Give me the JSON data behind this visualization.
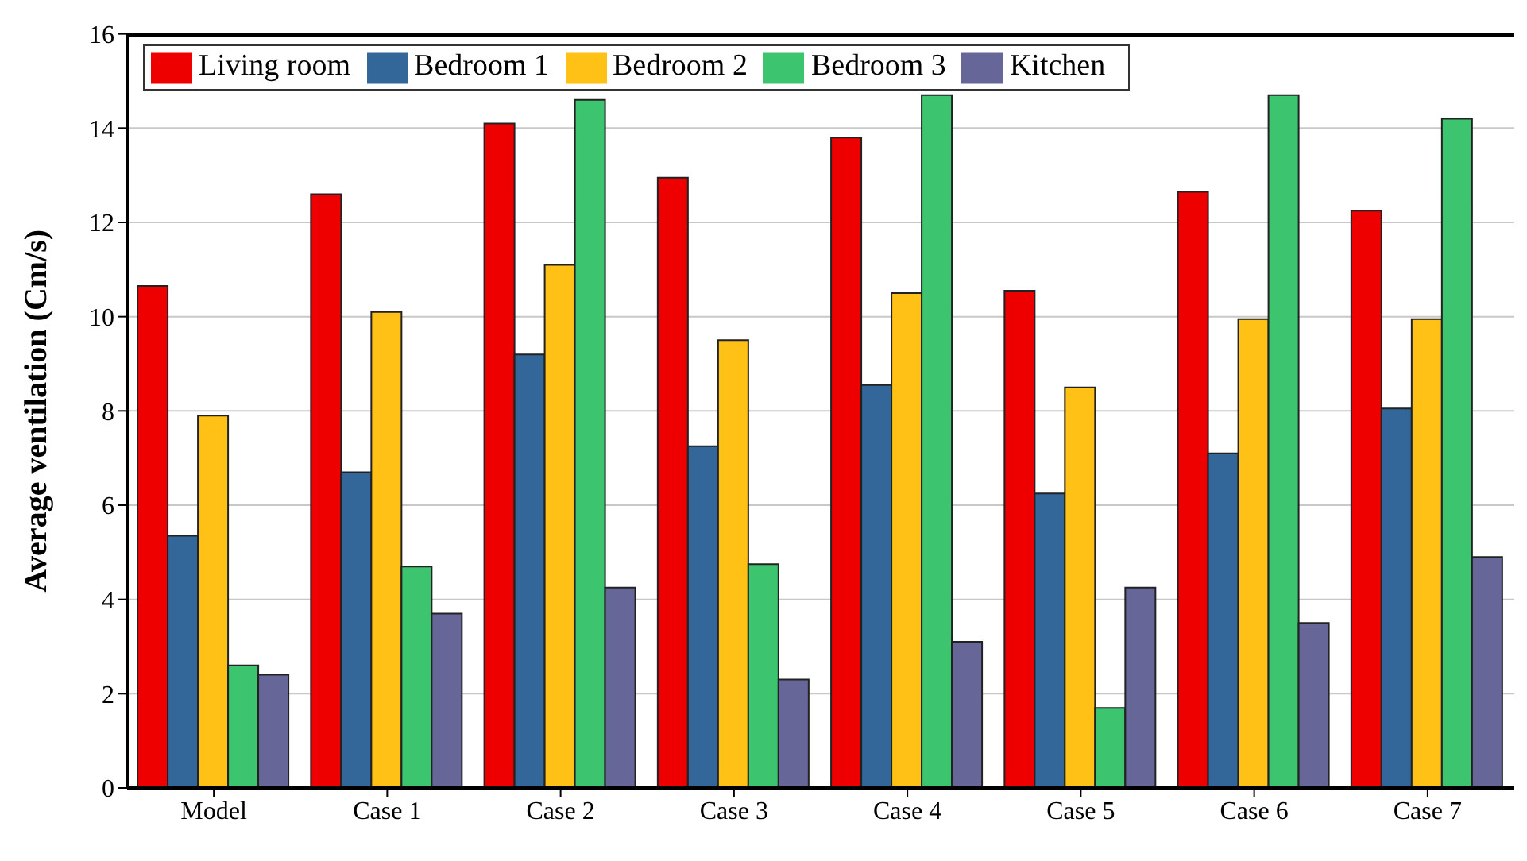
{
  "chart_data": {
    "type": "bar",
    "ylabel": "Average ventilation (Cm/s)",
    "categories": [
      "Model",
      "Case 1",
      "Case 2",
      "Case 3",
      "Case 4",
      "Case 5",
      "Case 6",
      "Case 7"
    ],
    "series": [
      {
        "name": "Living room",
        "color": "#ee0000",
        "values": [
          10.65,
          12.6,
          14.1,
          12.95,
          13.8,
          10.55,
          12.65,
          12.25
        ]
      },
      {
        "name": "Bedroom 1",
        "color": "#336699",
        "values": [
          5.35,
          6.7,
          9.2,
          7.25,
          8.55,
          6.25,
          7.1,
          8.05
        ]
      },
      {
        "name": "Bedroom 2",
        "color": "#ffc116",
        "values": [
          7.9,
          10.1,
          11.1,
          9.5,
          10.5,
          8.5,
          9.95,
          9.95
        ]
      },
      {
        "name": "Bedroom 3",
        "color": "#3cc46e",
        "values": [
          2.6,
          4.7,
          14.6,
          4.75,
          14.7,
          1.7,
          14.7,
          14.2
        ]
      },
      {
        "name": "Kitchen",
        "color": "#676699",
        "values": [
          2.4,
          3.7,
          4.25,
          2.3,
          3.1,
          4.25,
          3.5,
          4.9
        ]
      }
    ],
    "ylim": [
      0,
      16
    ],
    "yticks": [
      0,
      2,
      4,
      6,
      8,
      10,
      12,
      14,
      16
    ],
    "grid": "y",
    "legend": "top left"
  }
}
